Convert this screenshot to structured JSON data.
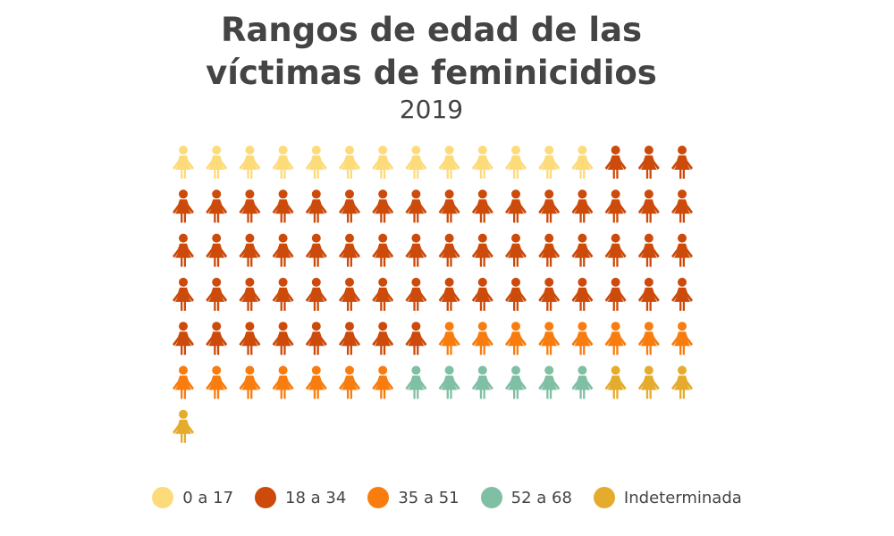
{
  "header": {
    "title_line1": "Rangos de edad de las",
    "title_line2": "víctimas de feminicidios",
    "subtitle": "2019"
  },
  "chart_data": {
    "type": "pictogram",
    "title": "Rangos de edad de las víctimas de feminicidios",
    "subtitle": "2019",
    "icon": "woman-icon",
    "columns": 16,
    "categories": [
      "0 a 17",
      "18 a 34",
      "35 a 51",
      "52 a 68",
      "Indeterminada"
    ],
    "values": [
      13,
      59,
      15,
      6,
      4
    ],
    "colors": [
      "#fddb7a",
      "#cc4a0a",
      "#f97c0e",
      "#7fbfa3",
      "#e5ab2c"
    ],
    "legend_position": "bottom"
  }
}
